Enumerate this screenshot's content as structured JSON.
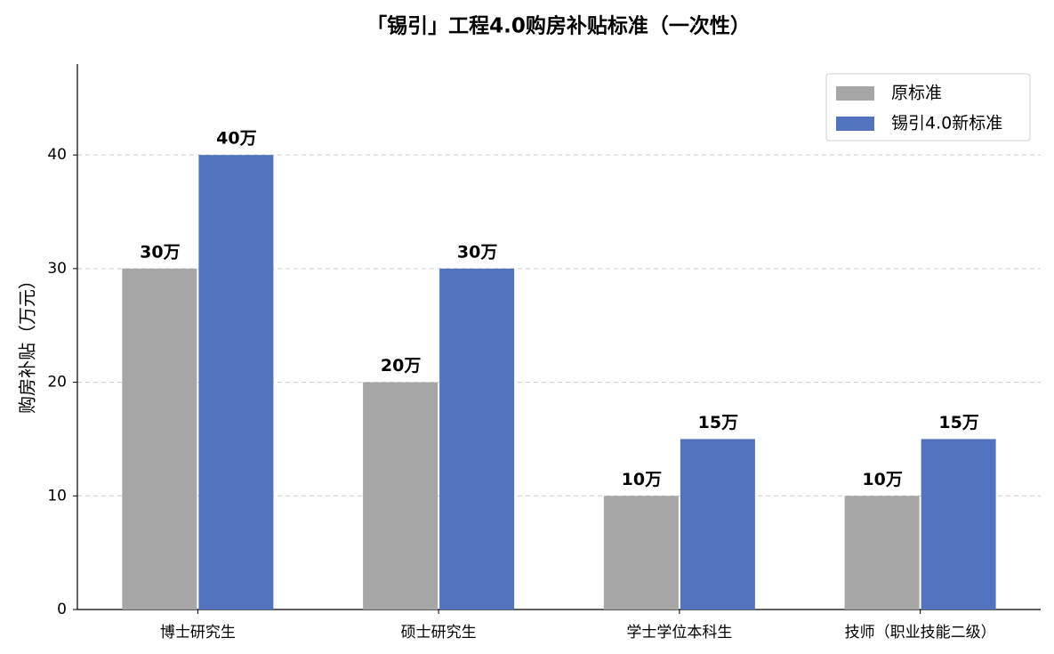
{
  "chart_data": {
    "type": "bar",
    "title": "「锡引」工程4.0购房补贴标准（一次性）",
    "ylabel": "购房补贴（万元）",
    "categories": [
      "博士研究生",
      "硕士研究生",
      "学士学位本科生",
      "技师（职业技能二级）"
    ],
    "series": [
      {
        "name": "原标准",
        "color": "#a6a6a6",
        "values": [
          30,
          20,
          10,
          10
        ],
        "value_labels": [
          "30万",
          "20万",
          "10万",
          "10万"
        ]
      },
      {
        "name": "锡引4.0新标准",
        "color": "#5273be",
        "values": [
          40,
          30,
          15,
          15
        ],
        "value_labels": [
          "40万",
          "30万",
          "15万",
          "15万"
        ]
      }
    ],
    "ylim": [
      0,
      48
    ],
    "yticks": [
      0,
      10,
      20,
      30,
      40
    ],
    "grid": true,
    "legend": "upper right"
  }
}
